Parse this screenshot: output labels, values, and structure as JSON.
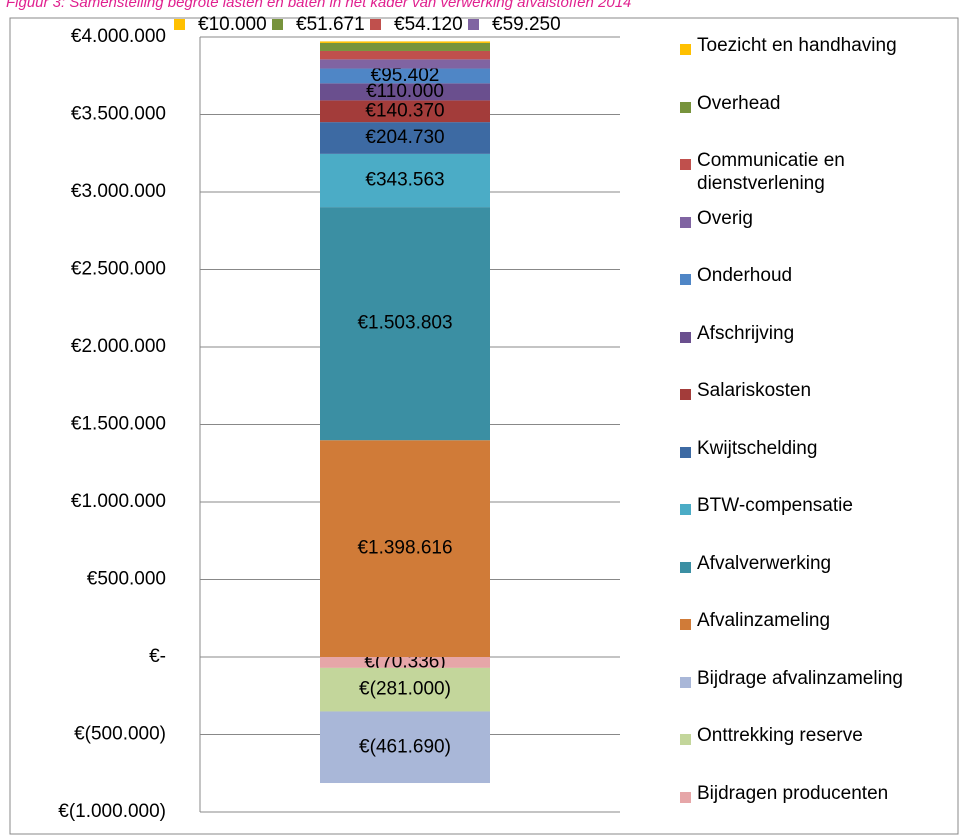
{
  "chart_data": {
    "type": "stacked-bar",
    "title": "Figuur 3: Samenstelling begrote lasten en baten in het kader van verwerking afvalstoffen 2014",
    "ylim": [
      -1000000,
      4000000
    ],
    "yticks": [
      {
        "value": -1000000,
        "label": "€(1.000.000)"
      },
      {
        "value": -500000,
        "label": "€(500.000)"
      },
      {
        "value": 0,
        "label": "€-"
      },
      {
        "value": 500000,
        "label": "€500.000"
      },
      {
        "value": 1000000,
        "label": "€1.000.000"
      },
      {
        "value": 1500000,
        "label": "€1.500.000"
      },
      {
        "value": 2000000,
        "label": "€2.000.000"
      },
      {
        "value": 2500000,
        "label": "€2.500.000"
      },
      {
        "value": 3000000,
        "label": "€3.000.000"
      },
      {
        "value": 3500000,
        "label": "€3.500.000"
      },
      {
        "value": 4000000,
        "label": "€4.000.000"
      }
    ],
    "grid": true,
    "series": [
      {
        "name": "Bijdragen producenten",
        "color": "#e6a6a8",
        "values": [
          -70336
        ],
        "value_labels": [
          "€(70.336)"
        ]
      },
      {
        "name": "Onttrekking reserve",
        "color": "#c3d69b",
        "values": [
          -281000
        ],
        "value_labels": [
          "€(281.000)"
        ]
      },
      {
        "name": "Bijdrage afvalinzameling",
        "color": "#a9b7d8",
        "values": [
          -461690
        ],
        "value_labels": [
          "€(461.690)"
        ]
      },
      {
        "name": "Afvalinzameling",
        "color": "#d07b38",
        "values": [
          1398616
        ],
        "value_labels": [
          "€1.398.616"
        ]
      },
      {
        "name": "Afvalverwerking",
        "color": "#3b8fa3",
        "values": [
          1503803
        ],
        "value_labels": [
          "€1.503.803"
        ]
      },
      {
        "name": "BTW-compensatie",
        "color": "#4bacc6",
        "values": [
          343563
        ],
        "value_labels": [
          "€343.563"
        ]
      },
      {
        "name": "Kwijtschelding",
        "color": "#3d6aa3",
        "values": [
          204730
        ],
        "value_labels": [
          "€204.730"
        ]
      },
      {
        "name": "Salariskosten",
        "color": "#a33c3a",
        "values": [
          140370
        ],
        "value_labels": [
          "€140.370"
        ]
      },
      {
        "name": "Afschrijving",
        "color": "#6a4f8e",
        "values": [
          110000
        ],
        "value_labels": [
          "€110.000"
        ]
      },
      {
        "name": "Onderhoud",
        "color": "#4f86c6",
        "values": [
          95402
        ],
        "value_labels": [
          "€95.402"
        ]
      },
      {
        "name": "Overig",
        "color": "#8064a2",
        "values": [
          59250
        ],
        "value_labels": [
          "€59.250"
        ]
      },
      {
        "name": "Communicatie en dienstverlening",
        "color": "#c0504d",
        "values": [
          54120
        ],
        "value_labels": [
          "€54.120"
        ]
      },
      {
        "name": "Overhead",
        "color": "#77933c",
        "values": [
          51671
        ],
        "value_labels": [
          "€51.671"
        ]
      },
      {
        "name": "Toezicht en handhaving",
        "color": "#ffc000",
        "values": [
          10000
        ],
        "value_labels": [
          "€10.000"
        ]
      }
    ]
  }
}
